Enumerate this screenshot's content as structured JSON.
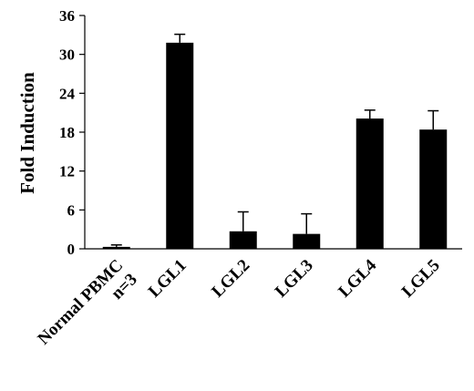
{
  "chart_data": {
    "type": "bar",
    "title": "",
    "xlabel": "",
    "ylabel": "Fold Induction",
    "ylim": [
      0,
      36
    ],
    "yticks": [
      0,
      6,
      12,
      18,
      24,
      30,
      36
    ],
    "grid": false,
    "legend": "none",
    "categories": [
      [
        "Normal PBMC",
        "n=3"
      ],
      [
        "LGL1"
      ],
      [
        "LGL2"
      ],
      [
        "LGL3"
      ],
      [
        "LGL4"
      ],
      [
        "LGL5"
      ]
    ],
    "values": [
      0.3,
      31.8,
      2.7,
      2.3,
      20.1,
      18.4
    ],
    "error_upper": [
      0.3,
      1.3,
      3.0,
      3.1,
      1.3,
      2.9
    ],
    "colors": {
      "bar": "#000000",
      "axis": "#000000"
    }
  }
}
